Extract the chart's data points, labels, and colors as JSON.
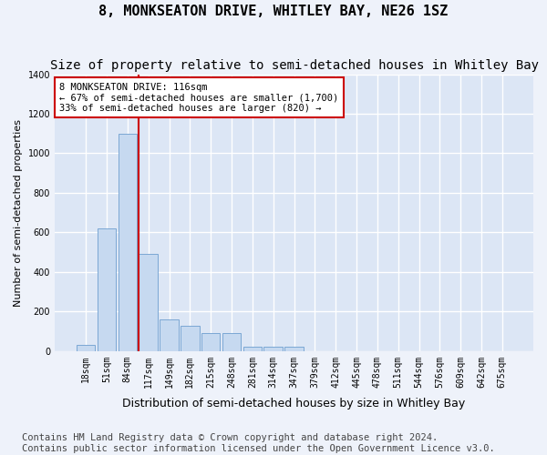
{
  "title": "8, MONKSEATON DRIVE, WHITLEY BAY, NE26 1SZ",
  "subtitle": "Size of property relative to semi-detached houses in Whitley Bay",
  "xlabel": "Distribution of semi-detached houses by size in Whitley Bay",
  "ylabel": "Number of semi-detached properties",
  "footer": "Contains HM Land Registry data © Crown copyright and database right 2024.\nContains public sector information licensed under the Open Government Licence v3.0.",
  "bin_labels": [
    "18sqm",
    "51sqm",
    "84sqm",
    "117sqm",
    "149sqm",
    "182sqm",
    "215sqm",
    "248sqm",
    "281sqm",
    "314sqm",
    "347sqm",
    "379sqm",
    "412sqm",
    "445sqm",
    "478sqm",
    "511sqm",
    "544sqm",
    "576sqm",
    "609sqm",
    "642sqm",
    "675sqm"
  ],
  "bar_values": [
    30,
    620,
    1100,
    490,
    160,
    130,
    90,
    90,
    20,
    20,
    20,
    0,
    0,
    0,
    0,
    0,
    0,
    0,
    0,
    0,
    0
  ],
  "bar_color": "#c6d9f0",
  "bar_edge_color": "#7ba7d4",
  "annotation_text": "8 MONKSEATON DRIVE: 116sqm\n← 67% of semi-detached houses are smaller (1,700)\n33% of semi-detached houses are larger (820) →",
  "annotation_box_color": "#ffffff",
  "annotation_box_edge": "#cc0000",
  "vline_color": "#cc0000",
  "vline_x_index": 3,
  "ylim": [
    0,
    1400
  ],
  "yticks": [
    0,
    200,
    400,
    600,
    800,
    1000,
    1200,
    1400
  ],
  "background_color": "#dce6f5",
  "grid_color": "#ffffff",
  "fig_background": "#eef2fa",
  "title_fontsize": 11,
  "subtitle_fontsize": 10,
  "ylabel_fontsize": 8,
  "xlabel_fontsize": 9,
  "tick_fontsize": 7,
  "footer_fontsize": 7.5
}
